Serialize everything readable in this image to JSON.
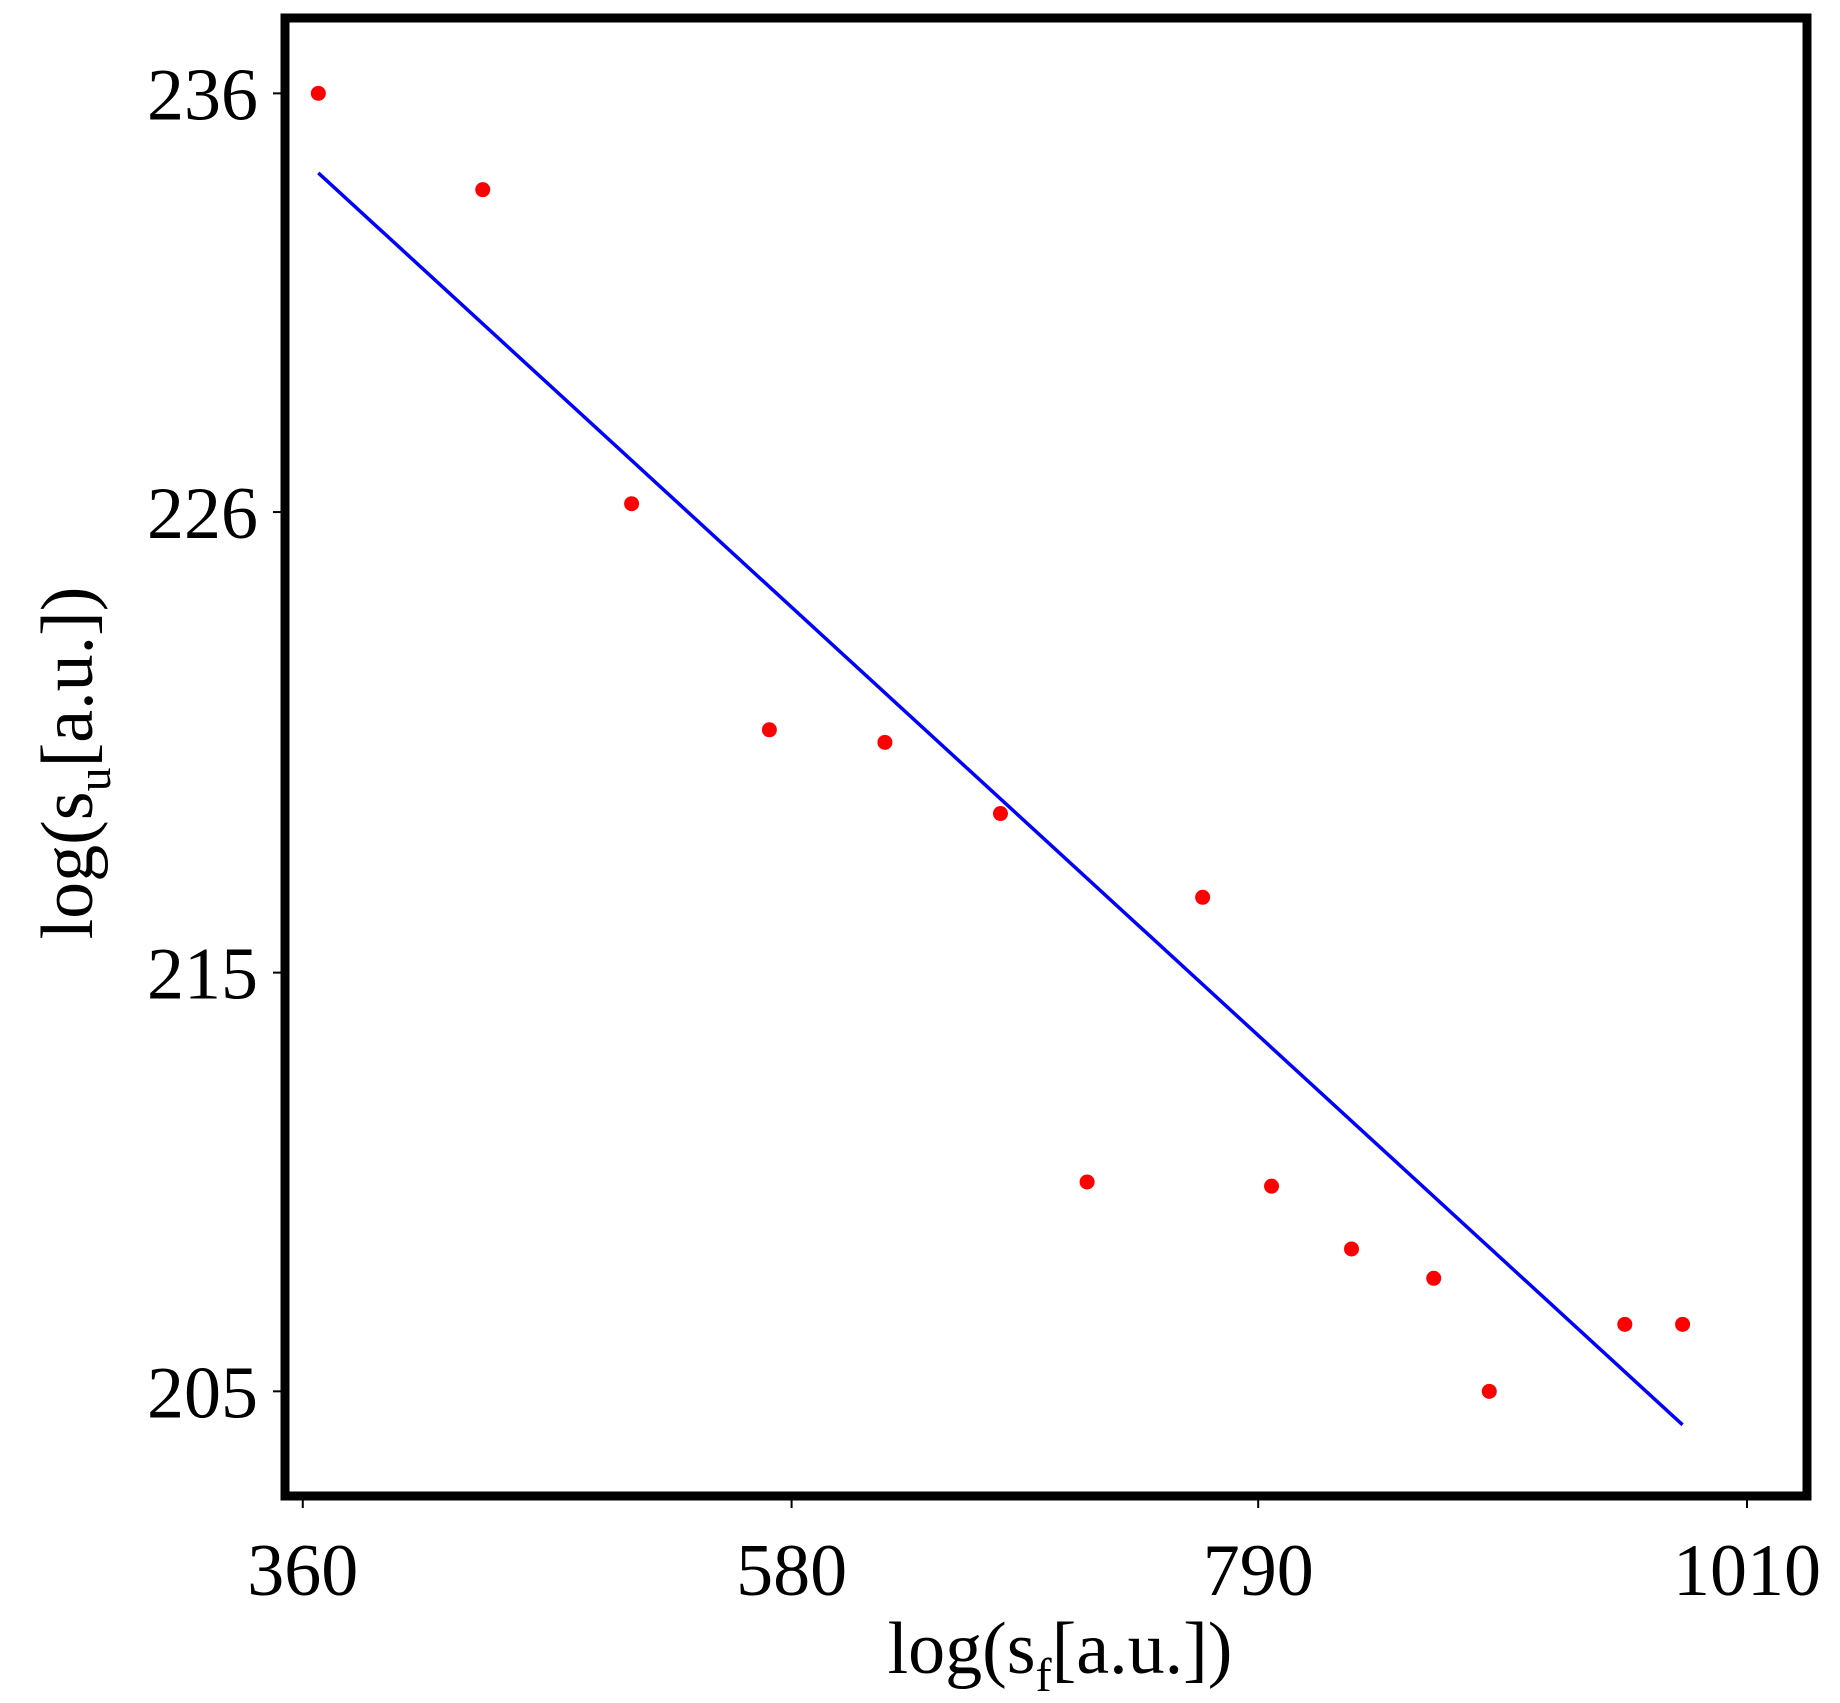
{
  "chart_data": {
    "type": "scatter",
    "title": "",
    "xlabel": {
      "prefix": "log(s",
      "sub": "f",
      "suffix": "[a.u.])"
    },
    "ylabel": {
      "prefix": "log(s",
      "sub": "u",
      "suffix": "[a.u.])"
    },
    "xlim": [
      352,
      1037
    ],
    "ylim": [
      202.5,
      237.8
    ],
    "x_ticks": [
      {
        "value": 360,
        "label": "360"
      },
      {
        "value": 580,
        "label": "580"
      },
      {
        "value": 790,
        "label": "790"
      },
      {
        "value": 1010,
        "label": "1010"
      }
    ],
    "y_ticks": [
      {
        "value": 236,
        "label": "236"
      },
      {
        "value": 226,
        "label": "226"
      },
      {
        "value": 215,
        "label": "215"
      },
      {
        "value": 205,
        "label": "205"
      }
    ],
    "grid": false,
    "legend": "none",
    "series": [
      {
        "kind": "points",
        "color": "#ff0000",
        "x": [
          367,
          441,
          508,
          570,
          622,
          674,
          713,
          765,
          796,
          832,
          869,
          894,
          955,
          981
        ],
        "y": [
          236.0,
          233.7,
          226.2,
          220.8,
          220.5,
          218.8,
          210.0,
          216.8,
          209.9,
          208.4,
          207.7,
          205.0,
          206.6,
          206.6
        ]
      },
      {
        "kind": "fit_line",
        "color": "#0000ff",
        "x": [
          367,
          981
        ],
        "y": [
          234.1,
          204.2
        ]
      }
    ]
  }
}
